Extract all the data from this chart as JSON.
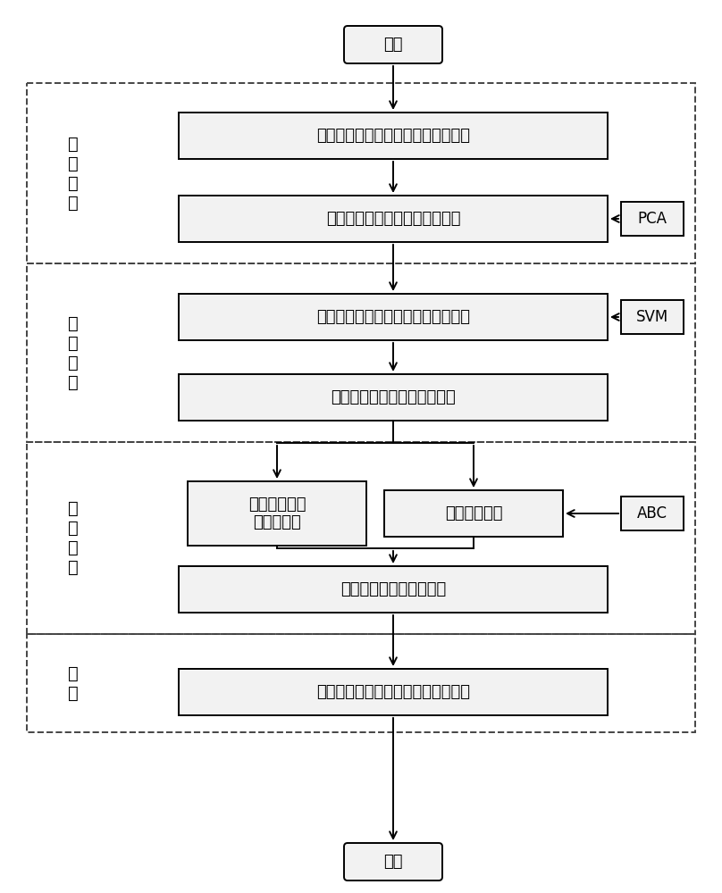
{
  "bg_color": "#ffffff",
  "box_fill": "#f2f2f2",
  "box_edge": "#000000",
  "dash_edge": "#444444",
  "start_text": "开始",
  "end_text": "结束",
  "section_labels": [
    "数\n据\n准\n备",
    "模\n型\n构\n建",
    "模\n型\n优\n化",
    "应\n用"
  ],
  "box_texts": [
    "定义系统，收集管道内腐蚀检测数据",
    "建立海底原油管道腐蚀指标体系",
    "构建海底原油管道腐蚀速率预测模型",
    "划分训练样本集与测试样本集",
    "利用训练样本\n集训练模型",
    "优化模型参数",
    "应用测试样本集评估模型",
    "获取待预测的海底原油管道腐蚀速率"
  ],
  "side_texts": [
    "PCA",
    "SVM",
    "ABC"
  ],
  "lw": 1.4,
  "arrow_lw": 1.4
}
